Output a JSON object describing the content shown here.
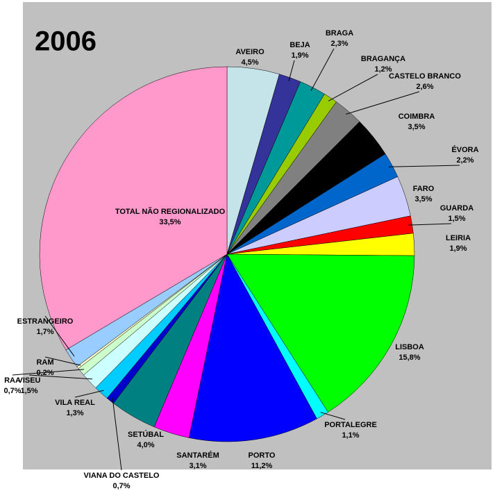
{
  "chart_data": {
    "type": "pie",
    "title": "2006",
    "categories": [
      "AVEIRO",
      "BEJA",
      "BRAGA",
      "BRAGANÇA",
      "CASTELO BRANCO",
      "COIMBRA",
      "ÉVORA",
      "FARO",
      "GUARDA",
      "LEIRIA",
      "LISBOA",
      "PORTALEGRE",
      "PORTO",
      "SANTARÉM",
      "SETÚBAL",
      "VIANA DO CASTELO",
      "VILA REAL",
      "VISEU",
      "RAA",
      "RAM",
      "ESTRANGEIRO",
      "TOTAL NÃO REGIONALIZADO"
    ],
    "values": [
      4.5,
      1.9,
      2.3,
      1.2,
      2.6,
      3.5,
      2.2,
      3.5,
      1.5,
      1.9,
      15.8,
      1.1,
      11.2,
      3.1,
      4.0,
      0.7,
      1.3,
      1.5,
      0.7,
      0.2,
      1.7,
      33.5
    ],
    "value_labels": [
      "4,5%",
      "1,9%",
      "2,3%",
      "1,2%",
      "2,6%",
      "3,5%",
      "2,2%",
      "3,5%",
      "1,5%",
      "1,9%",
      "15,8%",
      "1,1%",
      "11,2%",
      "3,1%",
      "4,0%",
      "0,7%",
      "1,3%",
      "1,5%",
      "0,7%",
      "0,2%",
      "1,7%",
      "33,5%"
    ],
    "colors": [
      "#c4e4ea",
      "#333399",
      "#009999",
      "#99cc00",
      "#808080",
      "#000000",
      "#0066cc",
      "#ccccff",
      "#ff0000",
      "#ffff00",
      "#00ff00",
      "#00ffff",
      "#0000ff",
      "#ff00ff",
      "#008080",
      "#0000cc",
      "#00ccff",
      "#ccffff",
      "#ccffcc",
      "#ffffcc",
      "#99ccff",
      "#ff99cc"
    ]
  }
}
